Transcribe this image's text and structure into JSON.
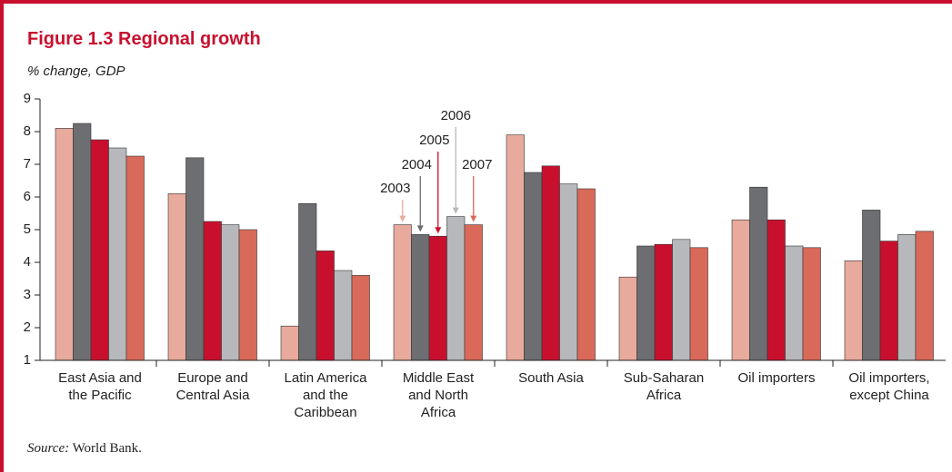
{
  "chart_data": {
    "type": "bar",
    "title": "Figure 1.3  Regional growth",
    "subtitle": "% change, GDP",
    "source_label": "Source:",
    "source": "World Bank.",
    "categories": [
      "East Asia and\nthe Pacific",
      "Europe and\nCentral Asia",
      "Latin America\nand the\nCaribbean",
      "Middle East\nand North\nAfrica",
      "South Asia",
      "Sub-Saharan\nAfrica",
      "Oil importers",
      "Oil importers,\nexcept China"
    ],
    "series": [
      {
        "name": "2003",
        "color": "#e8aa9c",
        "values": [
          8.1,
          6.1,
          2.05,
          5.15,
          7.9,
          3.55,
          5.3,
          4.05
        ]
      },
      {
        "name": "2004",
        "color": "#6d6e71",
        "values": [
          8.25,
          7.2,
          5.8,
          4.85,
          6.75,
          4.5,
          6.3,
          5.6
        ]
      },
      {
        "name": "2005",
        "color": "#c8102e",
        "values": [
          7.75,
          5.25,
          4.35,
          4.8,
          6.95,
          4.55,
          5.3,
          4.65
        ]
      },
      {
        "name": "2006",
        "color": "#b7b8bb",
        "values": [
          7.5,
          5.15,
          3.75,
          5.4,
          6.4,
          4.7,
          4.5,
          4.85
        ]
      },
      {
        "name": "2007",
        "color": "#d96a5a",
        "values": [
          7.25,
          5.0,
          3.6,
          5.15,
          6.25,
          4.45,
          4.45,
          4.95
        ]
      }
    ],
    "ylim": [
      1,
      9
    ],
    "yticks": [
      1,
      2,
      3,
      4,
      5,
      6,
      7,
      8,
      9
    ],
    "legend_category": 3
  }
}
